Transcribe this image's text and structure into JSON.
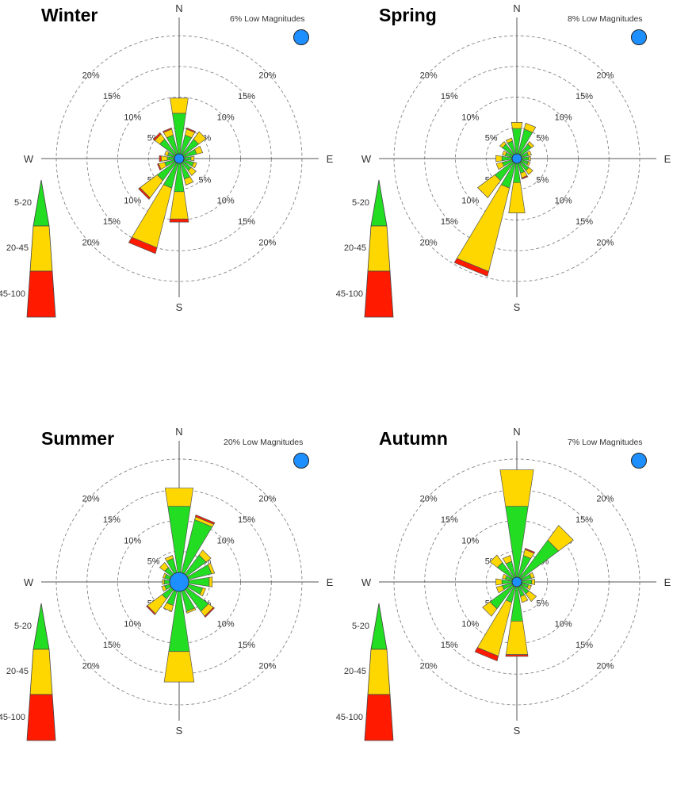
{
  "chart_data": [
    {
      "type": "wind-rose",
      "title": "Winter",
      "low_magnitudes": "6% Low Magnitudes",
      "directions": [
        "N",
        "NNE",
        "NE",
        "ENE",
        "E",
        "ESE",
        "SE",
        "SSE",
        "S",
        "SSW",
        "SW",
        "WSW",
        "W",
        "WNW",
        "NW",
        "NNW"
      ],
      "compass_labels": {
        "N": "N",
        "E": "E",
        "S": "S",
        "W": "W"
      },
      "ring_labels": [
        "5%",
        "10%",
        "15%",
        "20%"
      ],
      "rings": [
        5,
        10,
        15,
        20
      ],
      "legend": [
        "5-20",
        "20-45",
        "45-100"
      ],
      "series": [
        {
          "name": "5-20",
          "values": [
            7.0,
            3.5,
            3.5,
            2.5,
            1.5,
            2.0,
            2.0,
            3.0,
            5.0,
            4.5,
            4.0,
            2.0,
            1.5,
            1.5,
            3.5,
            3.5
          ]
        },
        {
          "name": "20-45",
          "values": [
            2.5,
            1.0,
            1.5,
            1.0,
            0.5,
            0.5,
            1.0,
            1.0,
            4.5,
            10.0,
            3.5,
            1.0,
            1.0,
            0.5,
            1.0,
            1.0
          ]
        },
        {
          "name": "45-100",
          "values": [
            0.0,
            0.2,
            0.0,
            0.0,
            0.0,
            0.0,
            0.0,
            0.0,
            0.5,
            1.0,
            0.3,
            0.2,
            0.3,
            0.0,
            0.3,
            0.2
          ]
        }
      ]
    },
    {
      "type": "wind-rose",
      "title": "Spring",
      "low_magnitudes": "8% Low Magnitudes",
      "directions": [
        "N",
        "NNE",
        "NE",
        "ENE",
        "E",
        "ESE",
        "SE",
        "SSE",
        "S",
        "SSW",
        "SW",
        "WSW",
        "W",
        "WNW",
        "NW",
        "NNW"
      ],
      "compass_labels": {
        "N": "N",
        "E": "E",
        "S": "S",
        "W": "W"
      },
      "ring_labels": [
        "5%",
        "10%",
        "15%",
        "20%"
      ],
      "rings": [
        5,
        10,
        15,
        20
      ],
      "legend": [
        "5-20",
        "20-45",
        "45-100"
      ],
      "series": [
        {
          "name": "5-20",
          "values": [
            4.5,
            4.5,
            2.5,
            1.5,
            1.5,
            1.5,
            2.0,
            2.0,
            3.5,
            4.5,
            4.0,
            2.0,
            2.0,
            1.5,
            2.5,
            2.5
          ]
        },
        {
          "name": "20-45",
          "values": [
            1.0,
            1.0,
            0.5,
            0.5,
            0.3,
            0.3,
            0.8,
            0.8,
            5.0,
            14.0,
            3.5,
            1.0,
            1.0,
            0.5,
            0.5,
            0.5
          ]
        },
        {
          "name": "45-100",
          "values": [
            0.0,
            0.0,
            0.0,
            0.0,
            0.0,
            0.0,
            0.0,
            0.2,
            0.0,
            0.8,
            0.0,
            0.0,
            0.0,
            0.0,
            0.0,
            0.0
          ]
        }
      ]
    },
    {
      "type": "wind-rose",
      "title": "Summer",
      "low_magnitudes": "20% Low Magnitudes",
      "directions": [
        "N",
        "NNE",
        "NE",
        "ENE",
        "E",
        "ESE",
        "SE",
        "SSE",
        "S",
        "SSW",
        "SW",
        "WSW",
        "W",
        "WNW",
        "NW",
        "NNW"
      ],
      "compass_labels": {
        "N": "N",
        "E": "E",
        "S": "S",
        "W": "W"
      },
      "ring_labels": [
        "5%",
        "10%",
        "15%",
        "20%"
      ],
      "rings": [
        5,
        10,
        15,
        20
      ],
      "legend": [
        "5-20",
        "20-45",
        "45-100"
      ],
      "series": [
        {
          "name": "5-20",
          "values": [
            12.0,
            10.0,
            5.0,
            5.0,
            4.5,
            3.5,
            5.5,
            4.5,
            11.0,
            3.5,
            3.0,
            2.0,
            2.0,
            2.0,
            2.5,
            3.5
          ]
        },
        {
          "name": "20-45",
          "values": [
            3.0,
            0.5,
            1.0,
            0.5,
            0.5,
            0.5,
            1.0,
            0.3,
            5.0,
            1.0,
            3.0,
            0.5,
            0.3,
            0.3,
            1.0,
            0.5
          ]
        },
        {
          "name": "45-100",
          "values": [
            0.0,
            0.3,
            0.0,
            0.0,
            0.0,
            0.0,
            0.2,
            0.0,
            0.0,
            0.0,
            0.2,
            0.0,
            0.0,
            0.0,
            0.0,
            0.0
          ]
        }
      ]
    },
    {
      "type": "wind-rose",
      "title": "Autumn",
      "low_magnitudes": "7% Low Magnitudes",
      "directions": [
        "N",
        "NNE",
        "NE",
        "ENE",
        "E",
        "ESE",
        "SE",
        "SSE",
        "S",
        "SSW",
        "SW",
        "WSW",
        "W",
        "WNW",
        "NW",
        "NNW"
      ],
      "compass_labels": {
        "N": "N",
        "E": "E",
        "S": "S",
        "W": "W"
      },
      "ring_labels": [
        "5%",
        "10%",
        "15%",
        "20%"
      ],
      "rings": [
        5,
        10,
        15,
        20
      ],
      "legend": [
        "5-20",
        "20-45",
        "45-100"
      ],
      "series": [
        {
          "name": "5-20",
          "values": [
            12.0,
            4.0,
            8.0,
            2.0,
            2.0,
            1.5,
            2.0,
            2.0,
            6.0,
            3.0,
            5.0,
            2.0,
            2.0,
            1.5,
            3.5,
            3.0
          ]
        },
        {
          "name": "20-45",
          "values": [
            6.0,
            1.0,
            3.0,
            0.5,
            0.5,
            0.5,
            1.5,
            1.0,
            5.5,
            9.0,
            1.5,
            1.0,
            1.0,
            0.5,
            1.5,
            1.0
          ]
        },
        {
          "name": "45-100",
          "values": [
            0.0,
            0.2,
            0.0,
            0.0,
            0.0,
            0.0,
            0.0,
            0.0,
            0.3,
            0.8,
            0.0,
            0.0,
            0.0,
            0.0,
            0.0,
            0.0
          ]
        }
      ]
    }
  ],
  "colors": {
    "band_5_20": "#22dd22",
    "band_20_45": "#ffd700",
    "band_45_100": "#ff1a00",
    "low_magnitude_dot": "#1e8fff",
    "ring": "#777777",
    "axis": "#555555"
  }
}
